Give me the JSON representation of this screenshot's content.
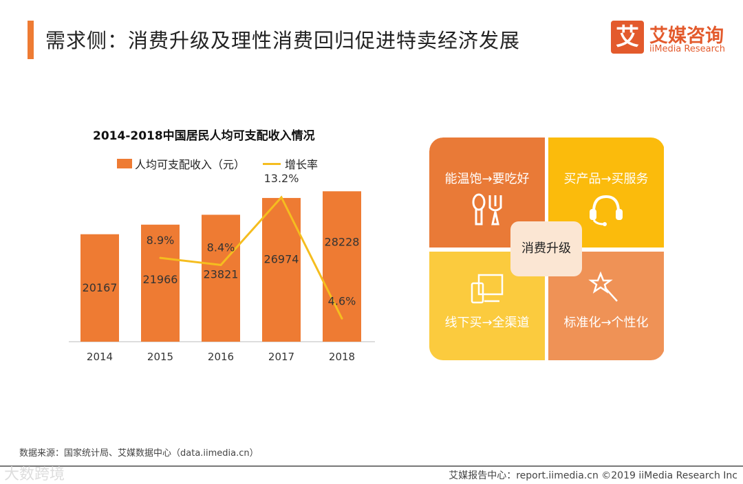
{
  "header": {
    "title": "需求侧：消费升级及理性消费回归促进特卖经济发展",
    "logo_mark": "艾",
    "logo_cn": "艾媒咨询",
    "logo_en": "iiMedia Research"
  },
  "chart_data": {
    "type": "bar+line",
    "title": "2014-2018中国居民人均可支配收入情况",
    "categories": [
      "2014",
      "2015",
      "2016",
      "2017",
      "2018"
    ],
    "series": [
      {
        "name": "人均可支配收入（元）",
        "type": "bar",
        "color": "#EE7B33",
        "values": [
          20167,
          21966,
          23821,
          26974,
          28228
        ]
      },
      {
        "name": "增长率",
        "type": "line",
        "color": "#F5BD1F",
        "values": [
          null,
          8.9,
          8.4,
          13.2,
          4.6
        ],
        "labels": [
          "",
          "8.9%",
          "8.4%",
          "13.2%",
          "4.6%"
        ]
      }
    ],
    "grid": false,
    "legend": "top"
  },
  "quadrants": {
    "center": "消费升级",
    "items": [
      {
        "label": "能温饱→要吃好",
        "icon": "cutlery-icon",
        "color": "#E97A37"
      },
      {
        "label": "买产品→买服务",
        "icon": "headset-icon",
        "color": "#FBBB0C"
      },
      {
        "label": "线下买→全渠道",
        "icon": "devices-icon",
        "color": "#FBCB3E"
      },
      {
        "label": "标准化→个性化",
        "icon": "magic-wand-icon",
        "color": "#EF9256"
      }
    ]
  },
  "footer": {
    "source": "数据来源：国家统计局、艾媒数据中心（data.iimedia.cn）",
    "report": "艾媒报告中心：report.iimedia.cn  ©2019  iiMedia Research Inc",
    "watermark": "大数跨境"
  }
}
